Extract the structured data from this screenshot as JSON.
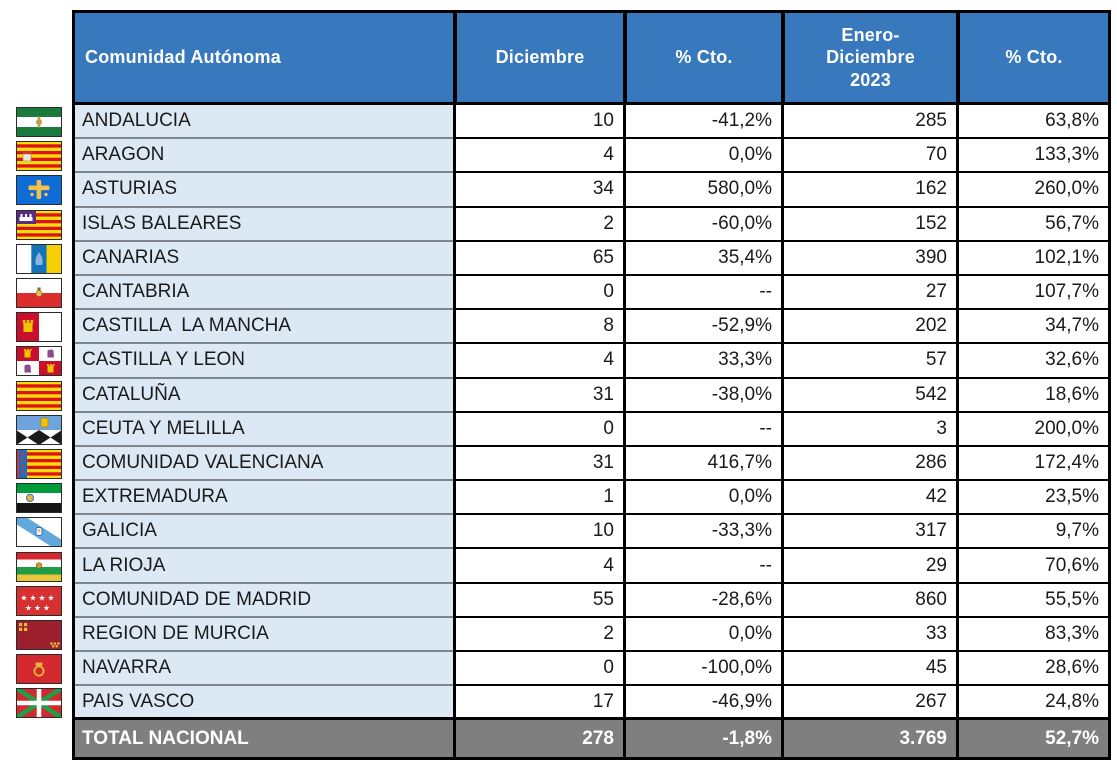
{
  "table": {
    "columns": [
      "Comunidad Autónoma",
      "Diciembre",
      "% Cto.",
      "Enero-\nDiciembre\n2023",
      "% Cto."
    ],
    "rows": [
      {
        "region": "ANDALUCIA",
        "flag": "andalucia",
        "dec": "10",
        "dec_pct": "-41,2%",
        "ytd": "285",
        "ytd_pct": "63,8%"
      },
      {
        "region": "ARAGON",
        "flag": "aragon",
        "dec": "4",
        "dec_pct": "0,0%",
        "ytd": "70",
        "ytd_pct": "133,3%"
      },
      {
        "region": "ASTURIAS",
        "flag": "asturias",
        "dec": "34",
        "dec_pct": "580,0%",
        "ytd": "162",
        "ytd_pct": "260,0%"
      },
      {
        "region": "ISLAS BALEARES",
        "flag": "baleares",
        "dec": "2",
        "dec_pct": "-60,0%",
        "ytd": "152",
        "ytd_pct": "56,7%"
      },
      {
        "region": "CANARIAS",
        "flag": "canarias",
        "dec": "65",
        "dec_pct": "35,4%",
        "ytd": "390",
        "ytd_pct": "102,1%"
      },
      {
        "region": "CANTABRIA",
        "flag": "cantabria",
        "dec": "0",
        "dec_pct": "--",
        "ytd": "27",
        "ytd_pct": "107,7%"
      },
      {
        "region": "CASTILLA  LA MANCHA",
        "flag": "castilla-la-mancha",
        "dec": "8",
        "dec_pct": "-52,9%",
        "ytd": "202",
        "ytd_pct": "34,7%"
      },
      {
        "region": "CASTILLA Y LEON",
        "flag": "castilla-y-leon",
        "dec": "4",
        "dec_pct": "33,3%",
        "ytd": "57",
        "ytd_pct": "32,6%"
      },
      {
        "region": "CATALUÑA",
        "flag": "cataluna",
        "dec": "31",
        "dec_pct": "-38,0%",
        "ytd": "542",
        "ytd_pct": "18,6%"
      },
      {
        "region": "CEUTA Y MELILLA",
        "flag": "ceuta-y-melilla",
        "dec": "0",
        "dec_pct": "--",
        "ytd": "3",
        "ytd_pct": "200,0%"
      },
      {
        "region": "COMUNIDAD VALENCIANA",
        "flag": "valenciana",
        "dec": "31",
        "dec_pct": "416,7%",
        "ytd": "286",
        "ytd_pct": "172,4%"
      },
      {
        "region": "EXTREMADURA",
        "flag": "extremadura",
        "dec": "1",
        "dec_pct": "0,0%",
        "ytd": "42",
        "ytd_pct": "23,5%"
      },
      {
        "region": "GALICIA",
        "flag": "galicia",
        "dec": "10",
        "dec_pct": "-33,3%",
        "ytd": "317",
        "ytd_pct": "9,7%"
      },
      {
        "region": "LA RIOJA",
        "flag": "la-rioja",
        "dec": "4",
        "dec_pct": "--",
        "ytd": "29",
        "ytd_pct": "70,6%"
      },
      {
        "region": "COMUNIDAD DE MADRID",
        "flag": "madrid",
        "dec": "55",
        "dec_pct": "-28,6%",
        "ytd": "860",
        "ytd_pct": "55,5%"
      },
      {
        "region": "REGION DE MURCIA",
        "flag": "murcia",
        "dec": "2",
        "dec_pct": "0,0%",
        "ytd": "33",
        "ytd_pct": "83,3%"
      },
      {
        "region": "NAVARRA",
        "flag": "navarra",
        "dec": "0",
        "dec_pct": "-100,0%",
        "ytd": "45",
        "ytd_pct": "28,6%"
      },
      {
        "region": "PAIS VASCO",
        "flag": "pais-vasco",
        "dec": "17",
        "dec_pct": "-46,9%",
        "ytd": "267",
        "ytd_pct": "24,8%"
      }
    ],
    "total": {
      "label": "TOTAL NACIONAL",
      "dec": "278",
      "dec_pct": "-1,8%",
      "ytd": "3.769",
      "ytd_pct": "52,7%"
    }
  },
  "colors": {
    "header_bg": "#3878BC",
    "header_text": "#ffffff",
    "name_cell_bg": "#DCE9F5",
    "name_separator": "#7E858C",
    "grid_border": "#000000",
    "total_bg": "#7F7F7F",
    "total_text": "#ffffff",
    "body_text": "#1a1a1a"
  }
}
